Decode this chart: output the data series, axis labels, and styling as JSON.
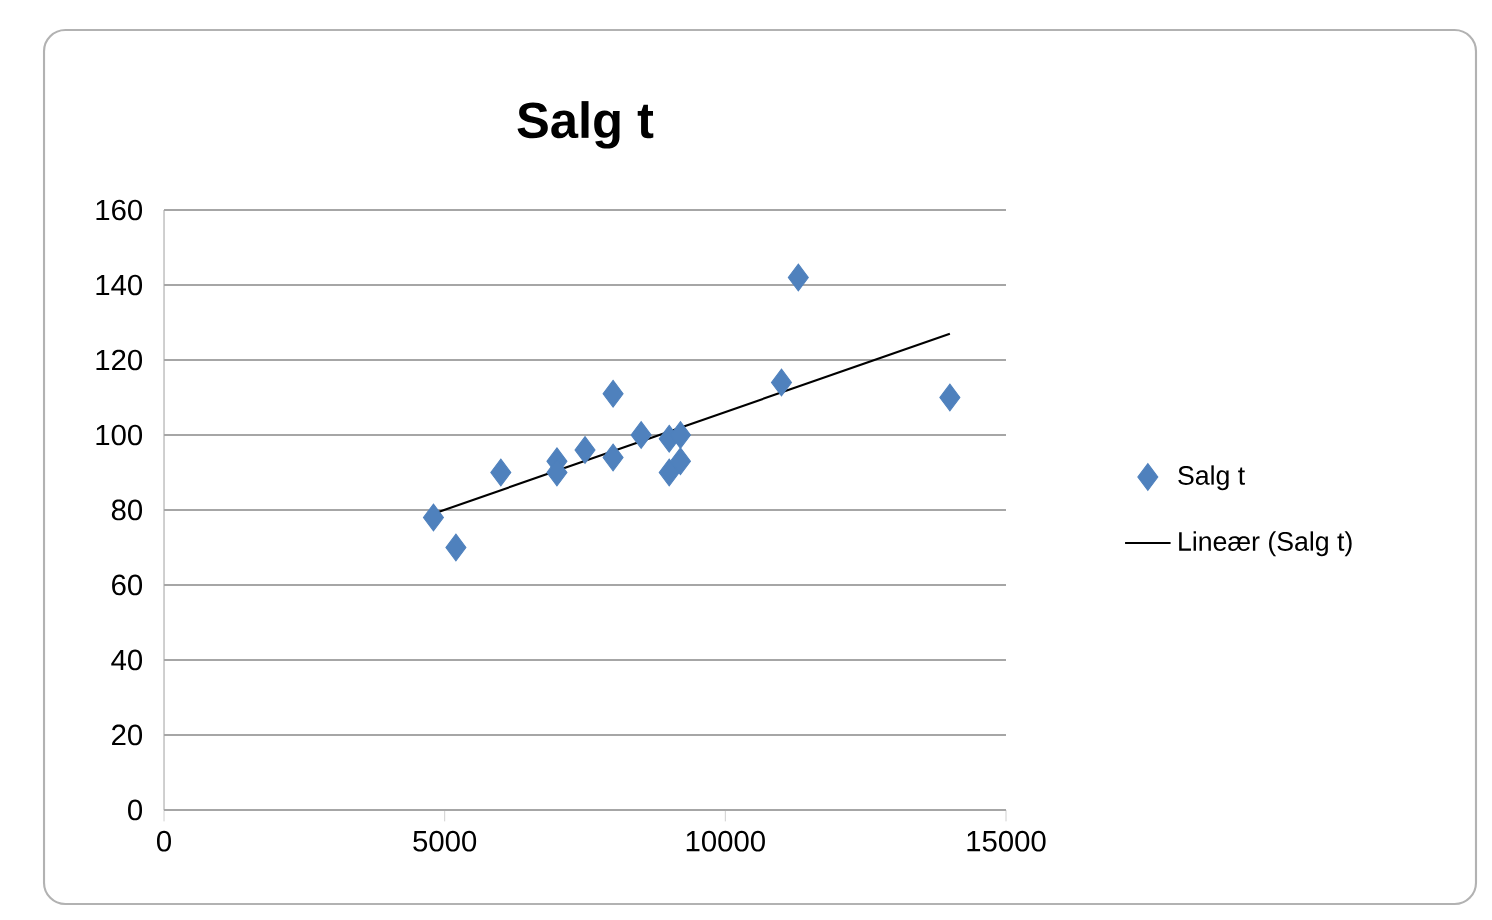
{
  "chart_data": {
    "type": "scatter",
    "title": "Salg t",
    "xlim": [
      0,
      15000
    ],
    "xticks": [
      0,
      5000,
      10000,
      15000
    ],
    "ylim": [
      0,
      160
    ],
    "yticks": [
      0,
      20,
      40,
      60,
      80,
      100,
      120,
      140,
      160
    ],
    "grid": "y",
    "legend": "right",
    "marker": "diamond",
    "series": [
      {
        "name": "Salg t",
        "color": "#4f81bd",
        "x": [
          4800,
          5200,
          6000,
          7000,
          7000,
          7500,
          8000,
          8000,
          8500,
          9000,
          9000,
          9200,
          9200,
          11000,
          11300,
          14000
        ],
        "values": [
          78,
          70,
          90,
          93,
          90,
          96,
          111,
          94,
          100,
          90,
          99,
          100,
          93,
          114,
          142,
          110
        ]
      },
      {
        "name": "Lineær (Salg t)",
        "type": "line",
        "color": "#000000",
        "marker": "none",
        "x": [
          4800,
          14000
        ],
        "values": [
          79,
          127
        ]
      }
    ]
  }
}
